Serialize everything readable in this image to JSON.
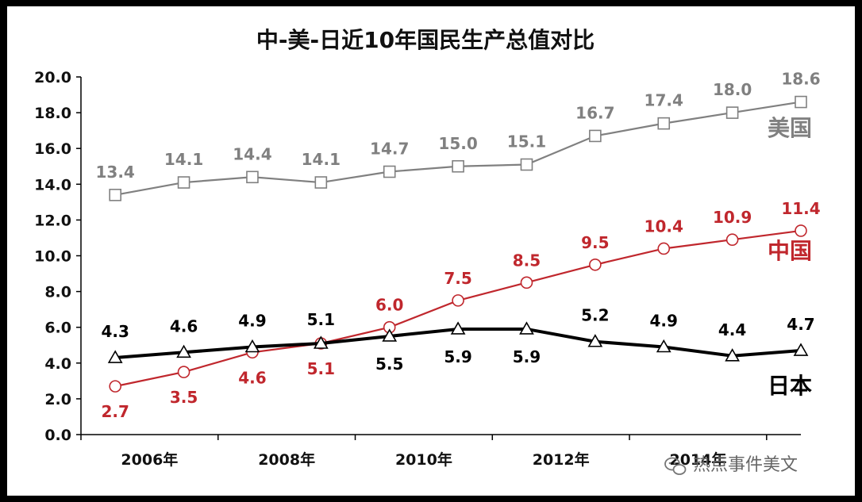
{
  "chart_data": {
    "type": "line",
    "title": "中-美-日近10年国民生产总值对比",
    "x": [
      "2006",
      "2007",
      "2008",
      "2009",
      "2010",
      "2011",
      "2012",
      "2013",
      "2014",
      "2015",
      "2016"
    ],
    "xtick_labels": [
      "2006年",
      "2008年",
      "2010年",
      "2012年",
      "2014年"
    ],
    "xtick_indices": [
      0,
      2,
      4,
      6,
      8
    ],
    "ytick_labels": [
      "0.0",
      "2.0",
      "4.0",
      "6.0",
      "8.0",
      "10.0",
      "12.0",
      "14.0",
      "16.0",
      "18.0",
      "20.0"
    ],
    "ylim": [
      0,
      20
    ],
    "series": [
      {
        "name": "美国",
        "color": "#808080",
        "marker": "square",
        "values": [
          13.4,
          14.1,
          14.4,
          14.1,
          14.7,
          15.0,
          15.1,
          16.7,
          17.4,
          18.0,
          18.6
        ],
        "labels": [
          "13.4",
          "14.1",
          "14.4",
          "14.1",
          "14.7",
          "15.0",
          "15.1",
          "16.7",
          "17.4",
          "18.0",
          "18.6"
        ]
      },
      {
        "name": "中国",
        "color": "#C0272D",
        "marker": "circle",
        "values": [
          2.7,
          3.5,
          4.6,
          5.1,
          6.0,
          7.5,
          8.5,
          9.5,
          10.4,
          10.9,
          11.4
        ],
        "labels": [
          "2.7",
          "3.5",
          "4.6",
          "5.1",
          "6.0",
          "7.5",
          "8.5",
          "9.5",
          "10.4",
          "10.9",
          "11.4"
        ]
      },
      {
        "name": "日本",
        "color": "#000000",
        "marker": "triangle",
        "values": [
          4.3,
          4.6,
          4.9,
          5.1,
          5.5,
          5.9,
          5.9,
          5.2,
          4.9,
          4.4,
          4.7
        ],
        "labels": [
          "4.3",
          "4.6",
          "4.9",
          "5.1",
          "5.5",
          "5.9",
          "5.9",
          "5.2",
          "4.9",
          "4.4",
          "4.7"
        ]
      }
    ]
  },
  "watermark": "热点事件美文"
}
